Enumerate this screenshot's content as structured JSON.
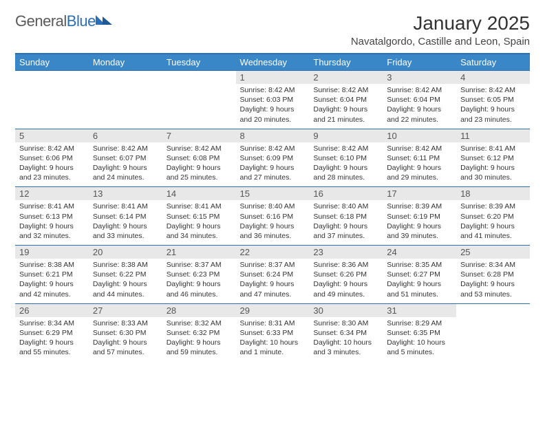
{
  "logo": {
    "text1": "General",
    "text2": "Blue"
  },
  "title": "January 2025",
  "location": "Navatalgordo, Castille and Leon, Spain",
  "colors": {
    "header_bg": "#3a87c8",
    "header_text": "#ffffff",
    "border": "#2a6fb5",
    "daynum_bg": "#e8e8e8",
    "daynum_text": "#555555",
    "body_text": "#333333",
    "logo_gray": "#5a5a5a",
    "logo_blue": "#2a6fb5"
  },
  "day_headers": [
    "Sunday",
    "Monday",
    "Tuesday",
    "Wednesday",
    "Thursday",
    "Friday",
    "Saturday"
  ],
  "weeks": [
    [
      {
        "n": "",
        "lines": []
      },
      {
        "n": "",
        "lines": []
      },
      {
        "n": "",
        "lines": []
      },
      {
        "n": "1",
        "lines": [
          "Sunrise: 8:42 AM",
          "Sunset: 6:03 PM",
          "Daylight: 9 hours",
          "and 20 minutes."
        ]
      },
      {
        "n": "2",
        "lines": [
          "Sunrise: 8:42 AM",
          "Sunset: 6:04 PM",
          "Daylight: 9 hours",
          "and 21 minutes."
        ]
      },
      {
        "n": "3",
        "lines": [
          "Sunrise: 8:42 AM",
          "Sunset: 6:04 PM",
          "Daylight: 9 hours",
          "and 22 minutes."
        ]
      },
      {
        "n": "4",
        "lines": [
          "Sunrise: 8:42 AM",
          "Sunset: 6:05 PM",
          "Daylight: 9 hours",
          "and 23 minutes."
        ]
      }
    ],
    [
      {
        "n": "5",
        "lines": [
          "Sunrise: 8:42 AM",
          "Sunset: 6:06 PM",
          "Daylight: 9 hours",
          "and 23 minutes."
        ]
      },
      {
        "n": "6",
        "lines": [
          "Sunrise: 8:42 AM",
          "Sunset: 6:07 PM",
          "Daylight: 9 hours",
          "and 24 minutes."
        ]
      },
      {
        "n": "7",
        "lines": [
          "Sunrise: 8:42 AM",
          "Sunset: 6:08 PM",
          "Daylight: 9 hours",
          "and 25 minutes."
        ]
      },
      {
        "n": "8",
        "lines": [
          "Sunrise: 8:42 AM",
          "Sunset: 6:09 PM",
          "Daylight: 9 hours",
          "and 27 minutes."
        ]
      },
      {
        "n": "9",
        "lines": [
          "Sunrise: 8:42 AM",
          "Sunset: 6:10 PM",
          "Daylight: 9 hours",
          "and 28 minutes."
        ]
      },
      {
        "n": "10",
        "lines": [
          "Sunrise: 8:42 AM",
          "Sunset: 6:11 PM",
          "Daylight: 9 hours",
          "and 29 minutes."
        ]
      },
      {
        "n": "11",
        "lines": [
          "Sunrise: 8:41 AM",
          "Sunset: 6:12 PM",
          "Daylight: 9 hours",
          "and 30 minutes."
        ]
      }
    ],
    [
      {
        "n": "12",
        "lines": [
          "Sunrise: 8:41 AM",
          "Sunset: 6:13 PM",
          "Daylight: 9 hours",
          "and 32 minutes."
        ]
      },
      {
        "n": "13",
        "lines": [
          "Sunrise: 8:41 AM",
          "Sunset: 6:14 PM",
          "Daylight: 9 hours",
          "and 33 minutes."
        ]
      },
      {
        "n": "14",
        "lines": [
          "Sunrise: 8:41 AM",
          "Sunset: 6:15 PM",
          "Daylight: 9 hours",
          "and 34 minutes."
        ]
      },
      {
        "n": "15",
        "lines": [
          "Sunrise: 8:40 AM",
          "Sunset: 6:16 PM",
          "Daylight: 9 hours",
          "and 36 minutes."
        ]
      },
      {
        "n": "16",
        "lines": [
          "Sunrise: 8:40 AM",
          "Sunset: 6:18 PM",
          "Daylight: 9 hours",
          "and 37 minutes."
        ]
      },
      {
        "n": "17",
        "lines": [
          "Sunrise: 8:39 AM",
          "Sunset: 6:19 PM",
          "Daylight: 9 hours",
          "and 39 minutes."
        ]
      },
      {
        "n": "18",
        "lines": [
          "Sunrise: 8:39 AM",
          "Sunset: 6:20 PM",
          "Daylight: 9 hours",
          "and 41 minutes."
        ]
      }
    ],
    [
      {
        "n": "19",
        "lines": [
          "Sunrise: 8:38 AM",
          "Sunset: 6:21 PM",
          "Daylight: 9 hours",
          "and 42 minutes."
        ]
      },
      {
        "n": "20",
        "lines": [
          "Sunrise: 8:38 AM",
          "Sunset: 6:22 PM",
          "Daylight: 9 hours",
          "and 44 minutes."
        ]
      },
      {
        "n": "21",
        "lines": [
          "Sunrise: 8:37 AM",
          "Sunset: 6:23 PM",
          "Daylight: 9 hours",
          "and 46 minutes."
        ]
      },
      {
        "n": "22",
        "lines": [
          "Sunrise: 8:37 AM",
          "Sunset: 6:24 PM",
          "Daylight: 9 hours",
          "and 47 minutes."
        ]
      },
      {
        "n": "23",
        "lines": [
          "Sunrise: 8:36 AM",
          "Sunset: 6:26 PM",
          "Daylight: 9 hours",
          "and 49 minutes."
        ]
      },
      {
        "n": "24",
        "lines": [
          "Sunrise: 8:35 AM",
          "Sunset: 6:27 PM",
          "Daylight: 9 hours",
          "and 51 minutes."
        ]
      },
      {
        "n": "25",
        "lines": [
          "Sunrise: 8:34 AM",
          "Sunset: 6:28 PM",
          "Daylight: 9 hours",
          "and 53 minutes."
        ]
      }
    ],
    [
      {
        "n": "26",
        "lines": [
          "Sunrise: 8:34 AM",
          "Sunset: 6:29 PM",
          "Daylight: 9 hours",
          "and 55 minutes."
        ]
      },
      {
        "n": "27",
        "lines": [
          "Sunrise: 8:33 AM",
          "Sunset: 6:30 PM",
          "Daylight: 9 hours",
          "and 57 minutes."
        ]
      },
      {
        "n": "28",
        "lines": [
          "Sunrise: 8:32 AM",
          "Sunset: 6:32 PM",
          "Daylight: 9 hours",
          "and 59 minutes."
        ]
      },
      {
        "n": "29",
        "lines": [
          "Sunrise: 8:31 AM",
          "Sunset: 6:33 PM",
          "Daylight: 10 hours",
          "and 1 minute."
        ]
      },
      {
        "n": "30",
        "lines": [
          "Sunrise: 8:30 AM",
          "Sunset: 6:34 PM",
          "Daylight: 10 hours",
          "and 3 minutes."
        ]
      },
      {
        "n": "31",
        "lines": [
          "Sunrise: 8:29 AM",
          "Sunset: 6:35 PM",
          "Daylight: 10 hours",
          "and 5 minutes."
        ]
      },
      {
        "n": "",
        "lines": []
      }
    ]
  ]
}
